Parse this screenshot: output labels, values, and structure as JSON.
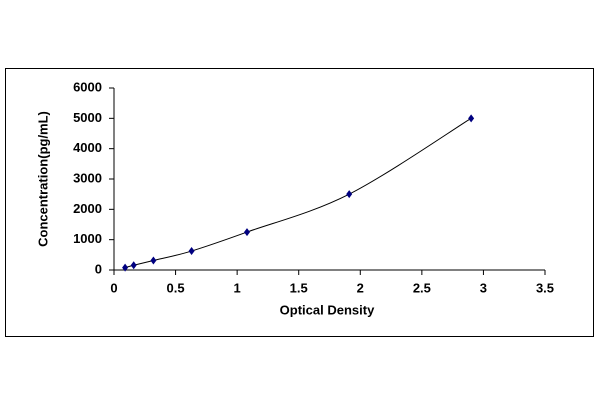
{
  "chart_data": {
    "type": "scatter",
    "x_label": "Optical Density",
    "y_label": "Concentration(pg/mL)",
    "x": [
      0.09,
      0.16,
      0.32,
      0.63,
      1.08,
      1.91,
      2.9
    ],
    "values": [
      78,
      156,
      312,
      625,
      1250,
      2500,
      5000
    ],
    "color": "#000080",
    "line_color": "#000000",
    "xlim": [
      0,
      3.5
    ],
    "xticks": [
      0,
      0.5,
      1,
      1.5,
      2,
      2.5,
      3,
      3.5
    ],
    "ylim": [
      0,
      6000
    ],
    "yticks": [
      0,
      1000,
      2000,
      3000,
      4000,
      5000,
      6000
    ]
  }
}
